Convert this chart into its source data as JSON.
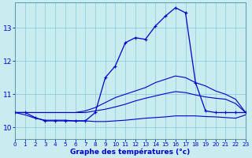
{
  "title": "Graphe des températures (°c)",
  "bg_color": "#c8ecf0",
  "grid_color": "#88c8d8",
  "line_color": "#0000cc",
  "x_ticks": [
    0,
    1,
    2,
    3,
    4,
    5,
    6,
    7,
    8,
    9,
    10,
    11,
    12,
    13,
    14,
    15,
    16,
    17,
    18,
    19,
    20,
    21,
    22,
    23
  ],
  "y_ticks": [
    10,
    11,
    12,
    13
  ],
  "ylim": [
    9.65,
    13.75
  ],
  "xlim": [
    0,
    23
  ],
  "hours": [
    0,
    1,
    2,
    3,
    4,
    5,
    6,
    7,
    8,
    9,
    10,
    11,
    12,
    13,
    14,
    15,
    16,
    17,
    18,
    19,
    20,
    21,
    22,
    23
  ],
  "temp_main": [
    10.45,
    10.45,
    10.3,
    10.2,
    10.2,
    10.2,
    10.2,
    10.2,
    10.45,
    11.5,
    11.85,
    12.55,
    12.7,
    12.65,
    13.05,
    13.35,
    13.6,
    13.45,
    11.35,
    10.5,
    10.45,
    10.45,
    10.45,
    10.45
  ],
  "temp_hi": [
    10.45,
    10.45,
    10.45,
    10.45,
    10.45,
    10.45,
    10.45,
    10.5,
    10.6,
    10.75,
    10.9,
    11.0,
    11.1,
    11.2,
    11.35,
    11.45,
    11.55,
    11.5,
    11.35,
    11.25,
    11.1,
    11.0,
    10.85,
    10.45
  ],
  "temp_med": [
    10.45,
    10.45,
    10.45,
    10.45,
    10.45,
    10.45,
    10.45,
    10.45,
    10.5,
    10.55,
    10.62,
    10.7,
    10.8,
    10.88,
    10.95,
    11.02,
    11.08,
    11.05,
    10.98,
    10.92,
    10.88,
    10.85,
    10.72,
    10.45
  ],
  "temp_lo": [
    10.45,
    10.38,
    10.28,
    10.22,
    10.22,
    10.22,
    10.2,
    10.2,
    10.18,
    10.18,
    10.2,
    10.22,
    10.25,
    10.28,
    10.3,
    10.32,
    10.35,
    10.35,
    10.35,
    10.33,
    10.32,
    10.3,
    10.28,
    10.38
  ]
}
